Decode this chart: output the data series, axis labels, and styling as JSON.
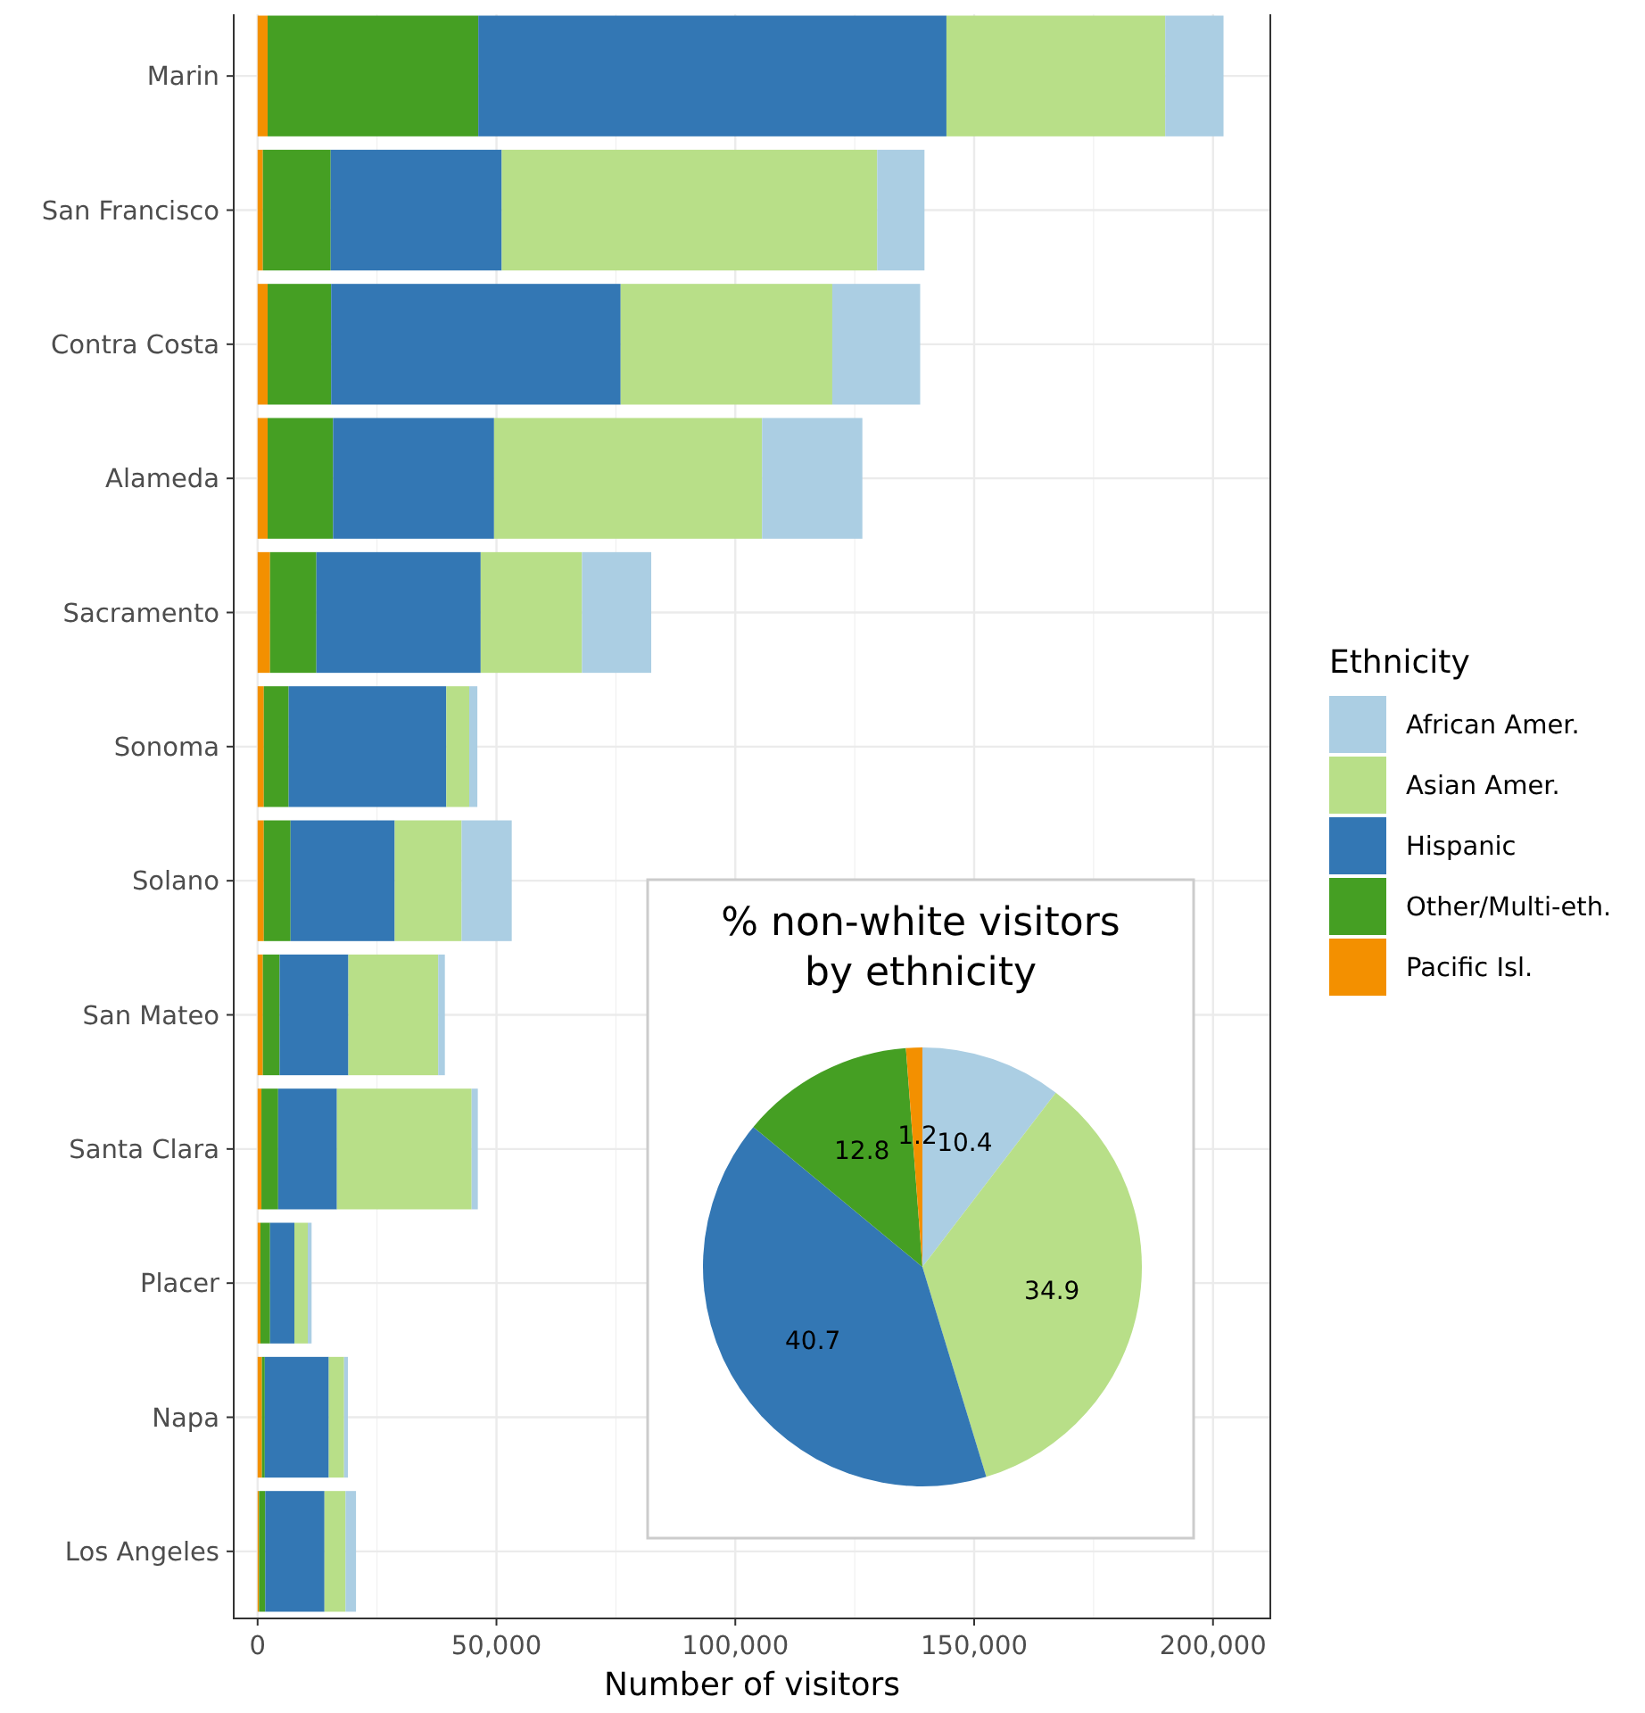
{
  "chart_data": [
    {
      "type": "bar",
      "orientation": "horizontal",
      "stacked": true,
      "xlabel": "Number of visitors",
      "legend_title": "Ethnicity",
      "legend": "right",
      "grid": true,
      "categories": [
        "Marin",
        "San Francisco",
        "Contra Costa",
        "Alameda",
        "Sacramento",
        "Sonoma",
        "Solano",
        "San Mateo",
        "Santa Clara",
        "Placer",
        "Napa",
        "Los Angeles"
      ],
      "xlim": [
        -5000,
        212000
      ],
      "xticks": [
        {
          "value": 0,
          "label": "0"
        },
        {
          "value": 50000,
          "label": "50,000"
        },
        {
          "value": 100000,
          "label": "100,000"
        },
        {
          "value": 150000,
          "label": "150,000"
        },
        {
          "value": 200000,
          "label": "200,000"
        }
      ],
      "series": [
        {
          "name": "Pacific Isl.",
          "color": "#f39000",
          "values": [
            2100,
            1100,
            2100,
            2100,
            2600,
            1300,
            1300,
            1100,
            800,
            600,
            900,
            300
          ]
        },
        {
          "name": "Other/Multi-eth.",
          "color": "#459f23",
          "values": [
            44100,
            14200,
            13300,
            13700,
            9700,
            5200,
            5600,
            3500,
            3500,
            2000,
            600,
            1300
          ]
        },
        {
          "name": "Hispanic",
          "color": "#3377b4",
          "values": [
            98000,
            35800,
            60600,
            33700,
            34400,
            33000,
            21800,
            14400,
            12300,
            5100,
            13400,
            12400
          ]
        },
        {
          "name": "Asian Amer.",
          "color": "#b8df88",
          "values": [
            45800,
            78600,
            44300,
            56100,
            21200,
            4800,
            14000,
            18800,
            28200,
            2800,
            3200,
            4400
          ]
        },
        {
          "name": "African Amer.",
          "color": "#abcee3",
          "values": [
            12200,
            9900,
            18400,
            21000,
            14500,
            1700,
            10500,
            1400,
            1300,
            800,
            800,
            2200
          ]
        }
      ]
    },
    {
      "type": "pie",
      "title": "% non-white visitors\nby ethnicity",
      "data_labels": true,
      "categories": [
        null,
        null,
        null,
        null,
        null
      ],
      "values": [
        10.4,
        34.9,
        40.7,
        12.8,
        1.2
      ],
      "colors": [
        "#abcee3",
        "#b8df88",
        "#3377b4",
        "#459f23",
        "#f39000"
      ]
    }
  ]
}
